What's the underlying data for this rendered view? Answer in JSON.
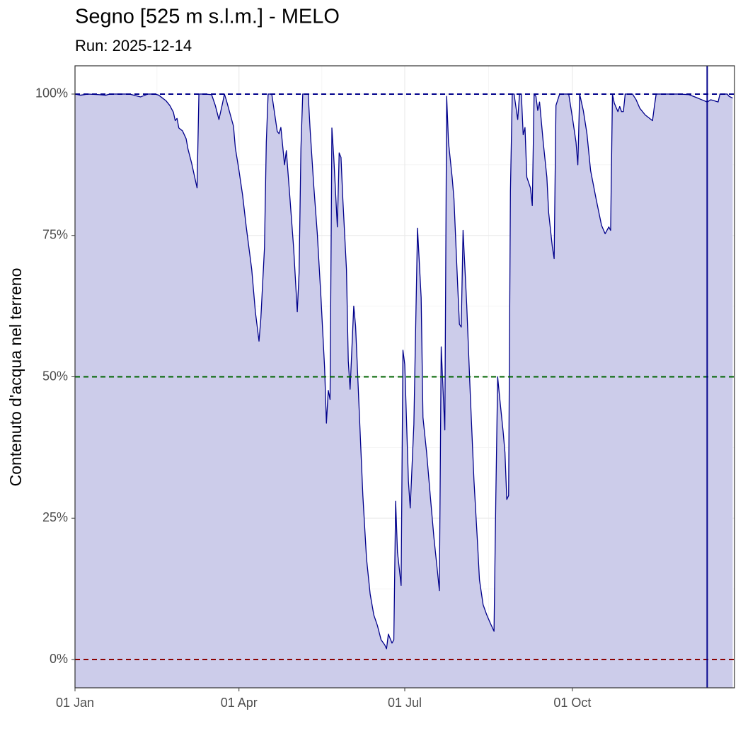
{
  "chart_data": {
    "type": "area",
    "title": "Segno [525 m s.l.m.] - MELO",
    "subtitle": "Run: 2025-12-14",
    "y_label": "Contenuto d'acqua nel terreno",
    "x": [
      0,
      3,
      7,
      13,
      17,
      19,
      24,
      30,
      36,
      40,
      44,
      46,
      50,
      52,
      54,
      55,
      56,
      57,
      59,
      61,
      62,
      64,
      67,
      68,
      71,
      75,
      77,
      79,
      81,
      82,
      83,
      87,
      88,
      90,
      92,
      94,
      97,
      99,
      101,
      102,
      104,
      105,
      106,
      108,
      109,
      111,
      112,
      113,
      115,
      116,
      118,
      120,
      122,
      123,
      124,
      125,
      128,
      129,
      131,
      133,
      135,
      137,
      138,
      139,
      140,
      141,
      142,
      144,
      145,
      146,
      147,
      149,
      150,
      151,
      153,
      154,
      155,
      156,
      158,
      160,
      162,
      164,
      166,
      168,
      170,
      171,
      172,
      174,
      175,
      176,
      177,
      179,
      180,
      181,
      183,
      184,
      186,
      188,
      190,
      191,
      193,
      195,
      197,
      199,
      200,
      201,
      203,
      204,
      205,
      207,
      208,
      210,
      211,
      212,
      213,
      215,
      217,
      219,
      221,
      222,
      224,
      226,
      228,
      230,
      231,
      232,
      233,
      235,
      236,
      237,
      238,
      239,
      240,
      241,
      243,
      244,
      245,
      246,
      247,
      248,
      250,
      251,
      252,
      253,
      254,
      255,
      257,
      259,
      260,
      262,
      263,
      264,
      266,
      271,
      273,
      275,
      276,
      277,
      279,
      281,
      283,
      286,
      289,
      291,
      293,
      294,
      295,
      296,
      298,
      299,
      300,
      301,
      302,
      306,
      308,
      310,
      313,
      315,
      317,
      318,
      319,
      331,
      337,
      341,
      344,
      347,
      349,
      351,
      353,
      354,
      358,
      359,
      361
    ],
    "series": [
      {
        "color": "#00008b",
        "fill": "#ccccea",
        "values": [
          100,
          99.8,
          100,
          99.9,
          99.8,
          100,
          100,
          100,
          99.5,
          100,
          100,
          99.8,
          98.8,
          98,
          96.8,
          95.3,
          95.7,
          94,
          93.5,
          92.1,
          90.3,
          87.8,
          83.4,
          100,
          100,
          99.9,
          98,
          95.5,
          98.4,
          100,
          99,
          94.3,
          90.5,
          86.5,
          82.1,
          76.5,
          69,
          61.5,
          56.3,
          60.3,
          72.8,
          91.5,
          100,
          100,
          97.8,
          93.4,
          93,
          94.1,
          87.5,
          90,
          81.5,
          72.8,
          61.5,
          68.4,
          90.3,
          100,
          100,
          94,
          84,
          75.3,
          64,
          51.6,
          41.8,
          47.6,
          46,
          94,
          89,
          76.5,
          89.6,
          88.8,
          81.5,
          69,
          52.8,
          47.8,
          62.5,
          59,
          51.6,
          44,
          29,
          17.9,
          11.6,
          7.9,
          6,
          3.5,
          2.6,
          1.9,
          4.5,
          2.9,
          3.5,
          28,
          19,
          13.1,
          54.7,
          52.2,
          31.6,
          26.8,
          41.6,
          76.3,
          64,
          42.8,
          36.6,
          29,
          21.6,
          15.4,
          12.2,
          55.3,
          40.6,
          99.6,
          91.5,
          85.3,
          81.5,
          66.5,
          59.3,
          58.8,
          75.9,
          62.8,
          46.6,
          31.6,
          20.3,
          14.1,
          9.7,
          7.9,
          6.4,
          5,
          29,
          50,
          46.6,
          40.3,
          36.6,
          28.3,
          29,
          82.8,
          100,
          100,
          95.5,
          100,
          100,
          92.8,
          94.1,
          85.3,
          83.4,
          80.3,
          100,
          99.6,
          97.1,
          98.6,
          91.5,
          85.3,
          79,
          73,
          70.9,
          98,
          100,
          100,
          95.9,
          91.5,
          87.5,
          100,
          97.1,
          93,
          86.5,
          81.5,
          76.8,
          75.3,
          76.5,
          75.9,
          100,
          98.4,
          96.9,
          97.8,
          96.9,
          96.9,
          100,
          100,
          99,
          97.5,
          96.3,
          95.8,
          95.3,
          97.8,
          100,
          100,
          99.9,
          99.4,
          99,
          98.6,
          99,
          98.8,
          98.6,
          100,
          100,
          99.6,
          99.3
        ]
      }
    ],
    "xlim": [
      0,
      362
    ],
    "xticks": [
      {
        "value": 0,
        "label": "01 Jan"
      },
      {
        "value": 90,
        "label": "01 Apr"
      },
      {
        "value": 181,
        "label": "01 Jul"
      },
      {
        "value": 273,
        "label": "01 Oct"
      }
    ],
    "ylim": [
      -5,
      105
    ],
    "yticks": [
      {
        "value": 0,
        "label": "0%"
      },
      {
        "value": 25,
        "label": "25%"
      },
      {
        "value": 50,
        "label": "50%"
      },
      {
        "value": 75,
        "label": "75%"
      },
      {
        "value": 100,
        "label": "100%"
      }
    ],
    "grid": true,
    "hlines": [
      {
        "value": 100,
        "color": "#00008b"
      },
      {
        "value": 50,
        "color": "#006400"
      },
      {
        "value": 0,
        "color": "#8b0000"
      }
    ],
    "vline": {
      "value": 347,
      "color": "#00008b"
    }
  }
}
